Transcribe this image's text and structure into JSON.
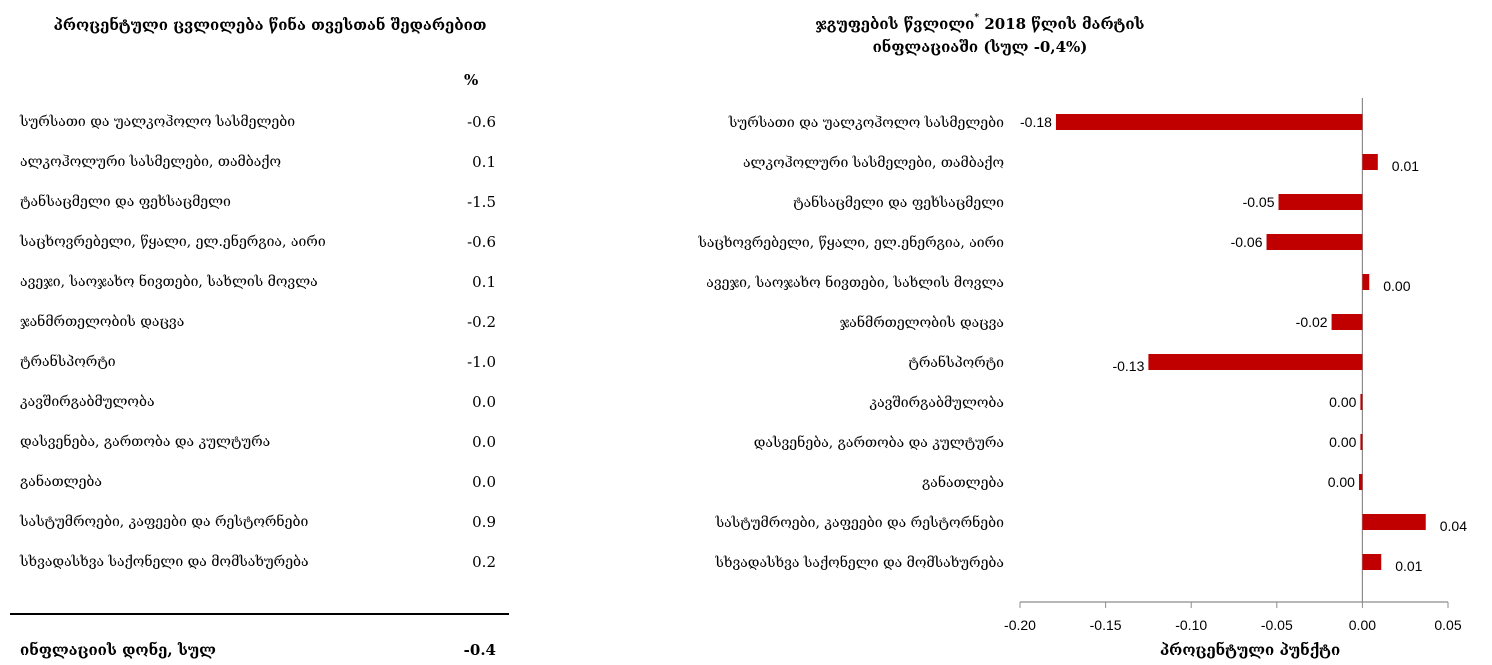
{
  "left": {
    "title": "პროცენტული ცვლილება წინა თვესთან შედარებით",
    "unit_header": "%",
    "rows": [
      {
        "label": "სურსათი და უალკოჰოლო სასმელები",
        "value": "-0.6"
      },
      {
        "label": "ალკოჰოლური სასმელები, თამბაქო",
        "value": "0.1"
      },
      {
        "label": "ტანსაცმელი და ფეხსაცმელი",
        "value": "-1.5"
      },
      {
        "label": "საცხოვრებელი, წყალი, ელ.ენერგია, აირი",
        "value": "-0.6"
      },
      {
        "label": "ავეჯი, საოჯახო ნივთები, სახლის მოვლა",
        "value": "0.1"
      },
      {
        "label": "ჯანმრთელობის დაცვა",
        "value": "-0.2"
      },
      {
        "label": "ტრანსპორტი",
        "value": "-1.0"
      },
      {
        "label": "კავშირგაბმულობა",
        "value": "0.0"
      },
      {
        "label": "დასვენება, გართობა და კულტურა",
        "value": "0.0"
      },
      {
        "label": "განათლება",
        "value": "0.0"
      },
      {
        "label": "სასტუმროები, კაფეები და რესტორნები",
        "value": "0.9"
      },
      {
        "label": "სხვადასხვა საქონელი და მომსახურება",
        "value": "0.2"
      }
    ],
    "total_label": "ინფლაციის დონე, სულ",
    "total_value": "-0.4"
  },
  "chart_data": {
    "type": "bar",
    "orientation": "horizontal",
    "title_line1_a": "ჯგუფების წვლილი",
    "title_sup": "*",
    "title_line1_b": " 2018 წლის მარტის",
    "title_line2": "ინფლაციაში (სულ -0,4%)",
    "xlabel": "პროცენტული პუნქტი",
    "ylabel": "",
    "xlim": [
      -0.2,
      0.05
    ],
    "xticks": [
      -0.2,
      -0.15,
      -0.1,
      -0.05,
      0.0,
      0.05
    ],
    "xtick_labels": [
      "-0.20",
      "-0.15",
      "-0.10",
      "-0.05",
      "0.00",
      "0.05"
    ],
    "grid": false,
    "bar_color": "#c00000",
    "categories": [
      "სურსათი და უალკოჰოლო სასმელები",
      "ალკოჰოლური სასმელები, თამბაქო",
      "ტანსაცმელი და ფეხსაცმელი",
      "საცხოვრებელი, წყალი, ელ.ენერგია, აირი",
      "ავეჯი, საოჯახო ნივთები, სახლის მოვლა",
      "ჯანმრთელობის დაცვა",
      "ტრანსპორტი",
      "კავშირგაბმულობა",
      "დასვენება, გართობა და კულტურა",
      "განათლება",
      "სასტუმროები, კაფეები და რესტორნები",
      "სხვადასხვა საქონელი და მომსახურება"
    ],
    "values": [
      -0.179,
      0.009,
      -0.049,
      -0.056,
      0.004,
      -0.018,
      -0.125,
      -0.001,
      -0.001,
      -0.002,
      0.037,
      0.011
    ],
    "data_labels": [
      "-0.18",
      "0.01",
      "-0.05",
      "-0.06",
      "0.00",
      "-0.02",
      "-0.13",
      "0.00",
      "0.00",
      "0.00",
      "0.04",
      "0.01"
    ]
  }
}
